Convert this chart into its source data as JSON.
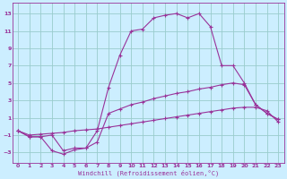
{
  "xlabel": "Windchill (Refroidissement éolien,°C)",
  "xlim": [
    -0.5,
    23.5
  ],
  "ylim": [
    -4.2,
    14.2
  ],
  "yticks": [
    -3,
    -1,
    1,
    3,
    5,
    7,
    9,
    11,
    13
  ],
  "xticks": [
    0,
    1,
    2,
    3,
    4,
    5,
    6,
    7,
    8,
    9,
    10,
    11,
    12,
    13,
    14,
    15,
    16,
    17,
    18,
    19,
    20,
    21,
    22,
    23
  ],
  "bg_color": "#cceeff",
  "line_color": "#993399",
  "grid_color": "#99cccc",
  "line1_x": [
    0,
    1,
    2,
    3,
    4,
    5,
    6,
    7,
    8,
    9,
    10,
    11,
    12,
    13,
    14,
    15,
    16,
    17,
    18,
    19,
    20,
    21,
    22,
    23
  ],
  "line1_y": [
    -0.5,
    -1.2,
    -1.2,
    -2.8,
    -3.2,
    -2.7,
    -2.5,
    -0.5,
    4.5,
    8.2,
    11.0,
    11.2,
    12.5,
    12.8,
    13.0,
    12.5,
    13.0,
    11.5,
    7.0,
    7.0,
    5.0,
    2.5,
    1.5,
    0.8
  ],
  "line2_x": [
    0,
    1,
    2,
    3,
    4,
    5,
    6,
    7,
    8,
    9,
    10,
    11,
    12,
    13,
    14,
    15,
    16,
    17,
    18,
    19,
    20,
    21,
    22,
    23
  ],
  "line2_y": [
    -0.5,
    -1.2,
    -1.2,
    -1.0,
    -2.8,
    -2.5,
    -2.5,
    -1.8,
    1.5,
    2.0,
    2.5,
    2.8,
    3.2,
    3.5,
    3.8,
    4.0,
    4.3,
    4.5,
    4.8,
    5.0,
    4.8,
    2.5,
    1.5,
    0.8
  ],
  "line3_x": [
    0,
    1,
    2,
    3,
    4,
    5,
    6,
    7,
    8,
    9,
    10,
    11,
    12,
    13,
    14,
    15,
    16,
    17,
    18,
    19,
    20,
    21,
    22,
    23
  ],
  "line3_y": [
    -0.5,
    -1.0,
    -0.9,
    -0.8,
    -0.7,
    -0.5,
    -0.4,
    -0.3,
    -0.1,
    0.1,
    0.3,
    0.5,
    0.7,
    0.9,
    1.1,
    1.3,
    1.5,
    1.7,
    1.9,
    2.1,
    2.2,
    2.2,
    1.8,
    0.5
  ]
}
